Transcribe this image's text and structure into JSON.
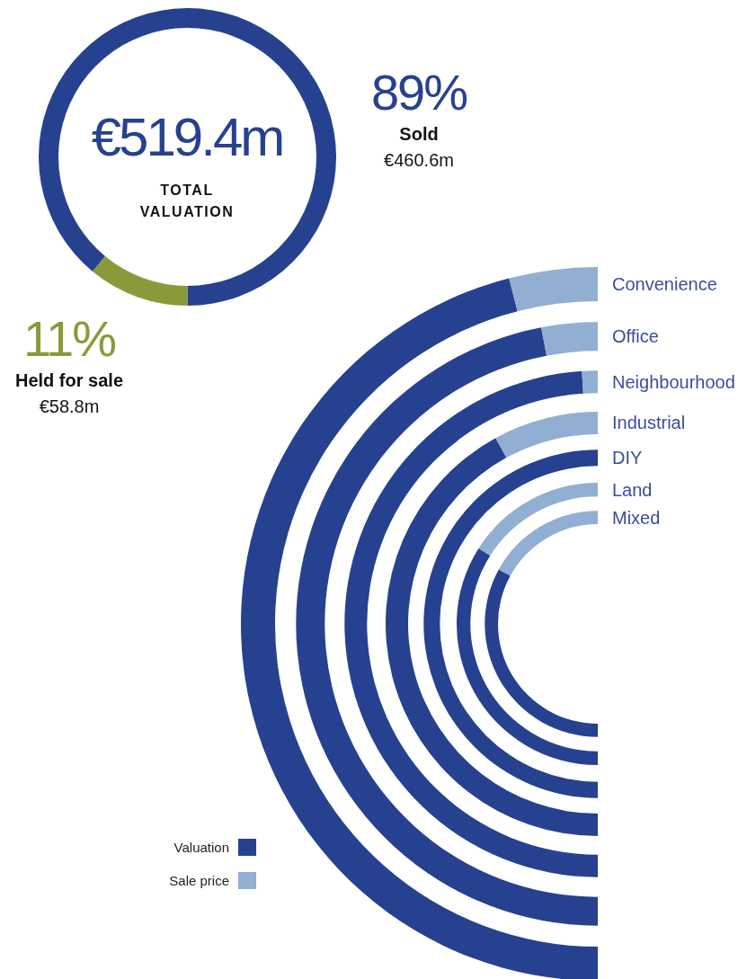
{
  "chart_data": [
    {
      "type": "donut",
      "title": "€519.4m",
      "subtitle": "TOTAL VALUATION",
      "categories": [
        "Sold",
        "Held for sale"
      ],
      "values": [
        89,
        11
      ],
      "colors": [
        "#26418f",
        "#8a9a3a"
      ],
      "value_labels": [
        "89%",
        "11%"
      ],
      "annotations": [
        {
          "text": "€460.6m",
          "x": "Sold"
        },
        {
          "text": "€58.8m",
          "x": "Held for sale"
        }
      ]
    },
    {
      "type": "donut",
      "legend": "bottom left",
      "categories": [
        "Valuation",
        "Sale price"
      ],
      "colors": [
        "#26418f",
        "#91afd2"
      ],
      "series": [
        {
          "name": "Convenience",
          "values": [
            92,
            8
          ]
        },
        {
          "name": "Office",
          "values": [
            94,
            6
          ]
        },
        {
          "name": "Neighbourhood",
          "values": [
            98,
            2
          ]
        },
        {
          "name": "Industrial",
          "values": [
            84,
            16
          ]
        },
        {
          "name": "DIY",
          "values": [
            100,
            0
          ]
        },
        {
          "name": "Land",
          "values": [
            68,
            32
          ]
        },
        {
          "name": "Mixed",
          "values": [
            66,
            34
          ]
        }
      ]
    }
  ]
}
